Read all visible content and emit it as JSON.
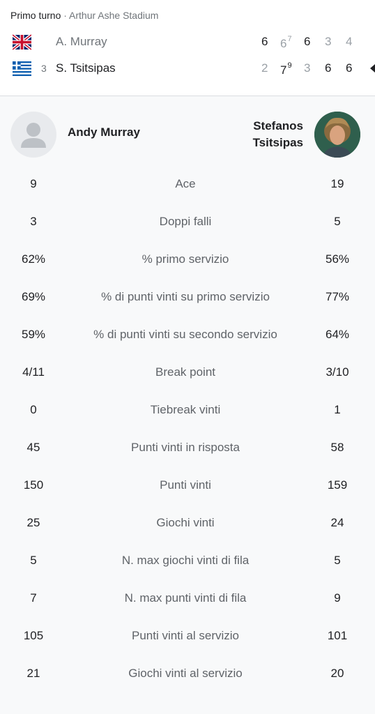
{
  "header": {
    "round": "Primo turno",
    "separator": " · ",
    "venue": "Arthur Ashe Stadium"
  },
  "players": [
    {
      "flag": "uk-flag-icon",
      "seed": "",
      "name": "A. Murray",
      "sets": [
        "6",
        "6",
        "6",
        "3",
        "4"
      ],
      "tiebreaks": [
        "",
        "7",
        "",
        "",
        ""
      ],
      "won_sets": [
        true,
        false,
        true,
        false,
        false
      ]
    },
    {
      "flag": "greece-flag-icon",
      "seed": "3",
      "name": "S. Tsitsipas",
      "sets": [
        "2",
        "7",
        "3",
        "6",
        "6"
      ],
      "tiebreaks": [
        "",
        "9",
        "",
        "",
        ""
      ],
      "won_sets": [
        false,
        true,
        false,
        true,
        true
      ],
      "winner": true
    }
  ],
  "comparison": {
    "left_name": "Andy Murray",
    "right_name_line1": "Stefanos",
    "right_name_line2": "Tsitsipas"
  },
  "stats": [
    {
      "label": "Ace",
      "left": "9",
      "right": "19"
    },
    {
      "label": "Doppi falli",
      "left": "3",
      "right": "5"
    },
    {
      "label": "% primo servizio",
      "left": "62%",
      "right": "56%"
    },
    {
      "label": "% di punti vinti su primo servizio",
      "left": "69%",
      "right": "77%"
    },
    {
      "label": "% di punti vinti su secondo servizio",
      "left": "59%",
      "right": "64%"
    },
    {
      "label": "Break point",
      "left": "4/11",
      "right": "3/10"
    },
    {
      "label": "Tiebreak vinti",
      "left": "0",
      "right": "1"
    },
    {
      "label": "Punti vinti in risposta",
      "left": "45",
      "right": "58"
    },
    {
      "label": "Punti vinti",
      "left": "150",
      "right": "159"
    },
    {
      "label": "Giochi vinti",
      "left": "25",
      "right": "24"
    },
    {
      "label": "N. max giochi vinti di fila",
      "left": "5",
      "right": "5"
    },
    {
      "label": "N. max punti vinti di fila",
      "left": "7",
      "right": "9"
    },
    {
      "label": "Punti vinti al servizio",
      "left": "105",
      "right": "101"
    },
    {
      "label": "Giochi vinti al servizio",
      "left": "21",
      "right": "20"
    }
  ],
  "colors": {
    "text": "#202124",
    "muted": "#70757a",
    "background": "#f8f9fa"
  }
}
